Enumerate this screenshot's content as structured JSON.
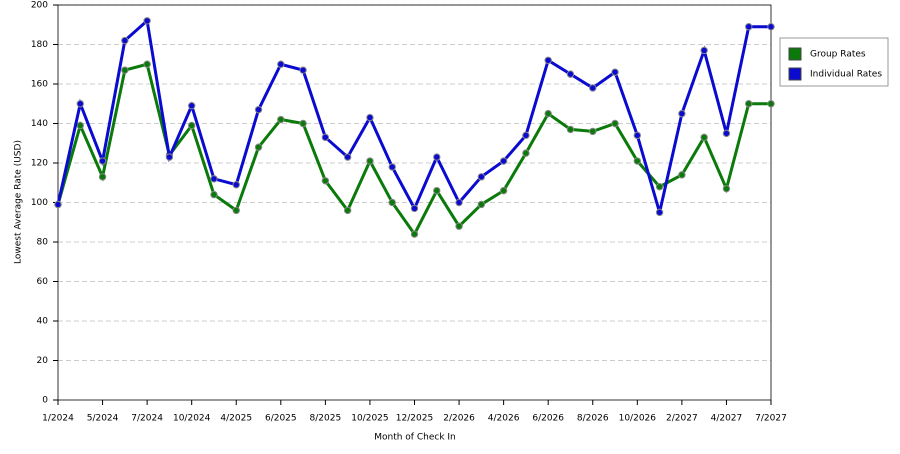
{
  "chart_data": {
    "type": "line",
    "x_label": "Month of Check In",
    "y_label": "Lowest Average Rate (USD)",
    "categories": [
      "1/2024",
      null,
      "5/2024",
      null,
      "7/2024",
      null,
      "10/2024",
      null,
      "4/2025",
      null,
      "6/2025",
      null,
      "8/2025",
      null,
      "10/2025",
      null,
      "12/2025",
      null,
      "2/2026",
      null,
      "4/2026",
      null,
      "6/2026",
      null,
      "8/2026",
      null,
      "10/2026",
      null,
      "2/2027",
      null,
      "4/2027",
      null,
      "7/2027"
    ],
    "series": [
      {
        "name": "Group Rates",
        "color": "#0a7a0a",
        "values": [
          99,
          139,
          113,
          167,
          170,
          124,
          139,
          104,
          96,
          128,
          142,
          140,
          111,
          96,
          121,
          100,
          84,
          106,
          88,
          99,
          106,
          125,
          145,
          137,
          136,
          140,
          121,
          108,
          114,
          133,
          107,
          150,
          150
        ]
      },
      {
        "name": "Individual Rates",
        "color": "#0a0ad0",
        "values": [
          99,
          150,
          121,
          182,
          192,
          123,
          149,
          112,
          109,
          147,
          170,
          167,
          133,
          123,
          143,
          118,
          97,
          123,
          100,
          113,
          121,
          134,
          172,
          165,
          158,
          166,
          134,
          95,
          145,
          177,
          135,
          189,
          189
        ]
      }
    ],
    "ylim": [
      0,
      200
    ],
    "yticks": [
      0,
      20,
      40,
      60,
      80,
      100,
      120,
      140,
      160,
      180,
      200
    ],
    "grid": true,
    "legend": "right"
  }
}
